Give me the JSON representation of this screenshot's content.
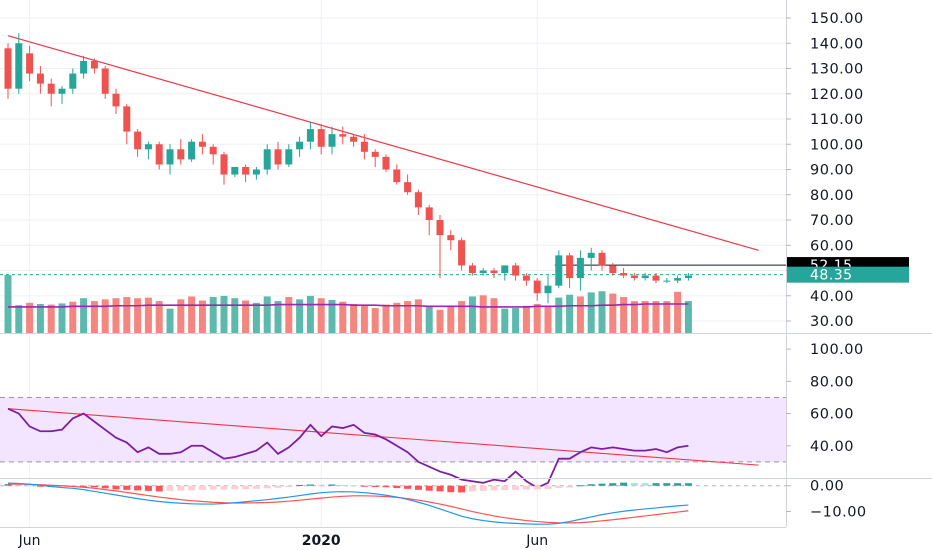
{
  "colors": {
    "up": "#26a69a",
    "down": "#ef5350",
    "up_volume": "#5db8ae",
    "down_volume": "#f3877f",
    "trendline": "#f23645",
    "ma": "#9c27b0",
    "rsi_line": "#7b1fa2",
    "rsi_band": "#f3e5ff",
    "macd_line": "#2196f3",
    "signal_line": "#ff5252",
    "axis_text": "#131722",
    "grid": "#eef0f5",
    "badge_last": "#26a69a",
    "badge_level": "#000000"
  },
  "price_axis": {
    "ticks": [
      "150.00",
      "140.00",
      "130.00",
      "120.00",
      "110.00",
      "100.00",
      "90.00",
      "80.00",
      "70.00",
      "60.00",
      "50.00",
      "40.00",
      "30.00"
    ],
    "tick_values": [
      150,
      140,
      130,
      120,
      110,
      100,
      90,
      80,
      70,
      60,
      50,
      40,
      30
    ],
    "range": [
      28,
      156
    ],
    "last_price_badge": "48.35",
    "level_badge": "52.15"
  },
  "rsi_axis": {
    "ticks": [
      "100.00",
      "80.00",
      "60.00",
      "40.00"
    ],
    "tick_values": [
      100,
      80,
      60,
      40
    ],
    "range": [
      20,
      110
    ],
    "band": [
      30,
      70
    ]
  },
  "macd_axis": {
    "ticks": [
      "0.00",
      "−10.00"
    ],
    "tick_values": [
      0,
      -10
    ],
    "range": [
      -16,
      3
    ]
  },
  "time_axis": {
    "labels": [
      {
        "text": "Jun",
        "index": 2,
        "bold": false
      },
      {
        "text": "2020",
        "index": 29,
        "bold": true
      },
      {
        "text": "Jun",
        "index": 49,
        "bold": false
      }
    ]
  },
  "chart_data": {
    "type": "candlestick",
    "ohlc": [
      [
        138,
        140,
        118,
        122
      ],
      [
        122,
        144,
        120,
        140
      ],
      [
        136,
        139,
        125,
        128
      ],
      [
        128,
        131,
        120,
        124
      ],
      [
        124,
        126,
        115,
        120
      ],
      [
        120,
        123,
        116,
        122
      ],
      [
        122,
        130,
        120,
        128
      ],
      [
        128,
        135,
        126,
        133
      ],
      [
        133,
        134,
        128,
        130
      ],
      [
        130,
        131,
        118,
        120
      ],
      [
        120,
        122,
        112,
        115
      ],
      [
        115,
        116,
        100,
        105
      ],
      [
        105,
        106,
        95,
        98
      ],
      [
        98,
        101,
        94,
        100
      ],
      [
        100,
        101,
        90,
        92
      ],
      [
        92,
        100,
        88,
        98
      ],
      [
        98,
        102,
        92,
        94
      ],
      [
        94,
        102,
        93,
        101
      ],
      [
        101,
        104,
        96,
        99
      ],
      [
        99,
        100,
        92,
        96
      ],
      [
        96,
        97,
        84,
        88
      ],
      [
        88,
        91,
        87,
        91
      ],
      [
        91,
        92,
        85,
        88
      ],
      [
        88,
        91,
        86,
        90
      ],
      [
        90,
        100,
        88,
        98
      ],
      [
        98,
        101,
        90,
        92
      ],
      [
        92,
        100,
        91,
        98
      ],
      [
        98,
        103,
        95,
        101
      ],
      [
        101,
        109,
        98,
        106
      ],
      [
        106,
        108,
        96,
        99
      ],
      [
        99,
        107,
        96,
        104
      ],
      [
        104,
        107,
        100,
        103
      ],
      [
        103,
        104,
        99,
        101
      ],
      [
        101,
        104,
        94,
        97
      ],
      [
        97,
        98,
        91,
        95
      ],
      [
        95,
        96,
        89,
        90
      ],
      [
        90,
        92,
        84,
        85
      ],
      [
        85,
        88,
        80,
        81
      ],
      [
        81,
        82,
        72,
        75
      ],
      [
        75,
        76,
        64,
        70
      ],
      [
        70,
        72,
        47,
        64
      ],
      [
        64,
        66,
        58,
        62
      ],
      [
        62,
        63,
        50,
        52
      ],
      [
        52,
        53,
        48,
        49
      ],
      [
        49,
        51,
        48,
        50
      ],
      [
        50,
        51,
        47,
        49
      ],
      [
        49,
        52,
        46,
        52
      ],
      [
        52,
        53,
        46,
        48
      ],
      [
        48,
        49,
        44,
        46
      ],
      [
        46,
        47,
        38,
        41
      ],
      [
        41,
        48,
        37,
        44
      ],
      [
        44,
        58,
        43,
        56
      ],
      [
        56,
        57,
        43,
        47
      ],
      [
        47,
        58,
        42,
        55
      ],
      [
        55,
        59,
        50,
        57
      ],
      [
        57,
        58,
        50,
        52
      ],
      [
        52,
        53,
        48,
        49
      ],
      [
        49,
        51,
        47,
        48
      ],
      [
        48,
        49,
        46,
        47
      ],
      [
        47,
        49,
        46,
        48
      ],
      [
        48,
        49,
        45,
        46
      ],
      [
        46,
        47,
        45,
        46
      ],
      [
        46,
        48,
        45,
        47
      ],
      [
        47,
        49,
        46,
        48
      ]
    ],
    "volume_ma": [
      45,
      45,
      45,
      45,
      45,
      45,
      46,
      46,
      46,
      46,
      47,
      47,
      47,
      48,
      48,
      48,
      48,
      48,
      48,
      48,
      48,
      48,
      48,
      48,
      48,
      49,
      49,
      49,
      49,
      49,
      49,
      49,
      48,
      48,
      48,
      47,
      47,
      47,
      47,
      46,
      46,
      46,
      46,
      46,
      45,
      45,
      45,
      45,
      45,
      46,
      46,
      46,
      47,
      47,
      47,
      48,
      48,
      49,
      49,
      50,
      50,
      50,
      50,
      50
    ],
    "volume": [
      [
        100,
        1
      ],
      [
        48,
        1
      ],
      [
        52,
        0
      ],
      [
        50,
        1
      ],
      [
        49,
        0
      ],
      [
        51,
        1
      ],
      [
        54,
        0
      ],
      [
        60,
        1
      ],
      [
        55,
        0
      ],
      [
        58,
        0
      ],
      [
        60,
        0
      ],
      [
        62,
        0
      ],
      [
        60,
        0
      ],
      [
        61,
        0
      ],
      [
        55,
        0
      ],
      [
        42,
        1
      ],
      [
        58,
        0
      ],
      [
        63,
        0
      ],
      [
        56,
        0
      ],
      [
        62,
        1
      ],
      [
        64,
        1
      ],
      [
        60,
        1
      ],
      [
        56,
        0
      ],
      [
        52,
        1
      ],
      [
        63,
        1
      ],
      [
        55,
        1
      ],
      [
        62,
        0
      ],
      [
        58,
        1
      ],
      [
        64,
        1
      ],
      [
        60,
        0
      ],
      [
        57,
        1
      ],
      [
        54,
        0
      ],
      [
        50,
        0
      ],
      [
        47,
        0
      ],
      [
        43,
        0
      ],
      [
        49,
        0
      ],
      [
        52,
        0
      ],
      [
        55,
        0
      ],
      [
        58,
        0
      ],
      [
        46,
        1
      ],
      [
        40,
        0
      ],
      [
        47,
        0
      ],
      [
        55,
        0
      ],
      [
        63,
        1
      ],
      [
        65,
        0
      ],
      [
        60,
        0
      ],
      [
        42,
        1
      ],
      [
        43,
        1
      ],
      [
        47,
        0
      ],
      [
        50,
        0
      ],
      [
        47,
        0
      ],
      [
        61,
        1
      ],
      [
        66,
        1
      ],
      [
        63,
        0
      ],
      [
        70,
        1
      ],
      [
        72,
        1
      ],
      [
        68,
        0
      ],
      [
        62,
        0
      ],
      [
        55,
        0
      ],
      [
        55,
        0
      ],
      [
        55,
        0
      ],
      [
        55,
        0
      ],
      [
        71,
        0
      ],
      [
        55,
        1
      ]
    ],
    "rsi": [
      63,
      60,
      52,
      49,
      49,
      50,
      57,
      60,
      55,
      50,
      45,
      42,
      36,
      39,
      35,
      35,
      36,
      40,
      40,
      36,
      32,
      33,
      35,
      37,
      42,
      35,
      39,
      45,
      53,
      46,
      52,
      51,
      53,
      48,
      47,
      44,
      40,
      36,
      30,
      27,
      24,
      22,
      19,
      18,
      17,
      19,
      18,
      24,
      18,
      14,
      17,
      32,
      32,
      36,
      39,
      38,
      39,
      38,
      37,
      37,
      38,
      36,
      39,
      40
    ],
    "macd_histogram": [
      0.6,
      0.4,
      0.2,
      -0.3,
      -0.5,
      -0.4,
      -0.2,
      -0.3,
      -0.6,
      -1.0,
      -1.4,
      -1.6,
      -1.8,
      -2.0,
      -2.2,
      -2.0,
      -1.9,
      -1.8,
      -1.6,
      -1.5,
      -1.5,
      -1.4,
      -1.3,
      -1.2,
      -1.0,
      -0.8,
      -0.5,
      0.3,
      0.5,
      0.4,
      0.5,
      0.3,
      0.2,
      -0.2,
      -0.5,
      -0.6,
      -0.9,
      -1.2,
      -1.6,
      -1.9,
      -2.2,
      -2.5,
      -2.6,
      -2.2,
      -2.0,
      -1.8,
      -1.7,
      -1.6,
      -1.5,
      -1.4,
      -1.3,
      -0.9,
      -0.7,
      0.2,
      0.6,
      0.8,
      1.0,
      1.2,
      1.1,
      1.0,
      1.0,
      1.0,
      1.0,
      1.0
    ],
    "macd": [
      1.0,
      0.9,
      0.6,
      0.2,
      -0.3,
      -0.7,
      -1.0,
      -1.5,
      -2.2,
      -2.9,
      -3.6,
      -4.3,
      -5.0,
      -5.6,
      -6.1,
      -6.5,
      -6.8,
      -7.0,
      -7.1,
      -7.1,
      -6.9,
      -6.6,
      -6.2,
      -5.8,
      -5.4,
      -4.9,
      -4.4,
      -3.8,
      -3.2,
      -2.7,
      -2.4,
      -2.3,
      -2.4,
      -2.7,
      -3.1,
      -3.7,
      -4.4,
      -5.3,
      -6.4,
      -7.6,
      -9.0,
      -10.4,
      -11.8,
      -12.8,
      -13.5,
      -14.0,
      -14.4,
      -14.6,
      -14.8,
      -14.9,
      -14.9,
      -14.6,
      -13.9,
      -13.0,
      -12.1,
      -11.2,
      -10.5,
      -9.9,
      -9.4,
      -9.0,
      -8.6,
      -8.2,
      -7.8,
      -7.5
    ],
    "signal": [
      0.6,
      0.6,
      0.5,
      0.4,
      0.2,
      0.0,
      -0.3,
      -0.6,
      -1.0,
      -1.5,
      -2.0,
      -2.6,
      -3.2,
      -3.8,
      -4.4,
      -4.9,
      -5.4,
      -5.8,
      -6.1,
      -6.4,
      -6.6,
      -6.7,
      -6.7,
      -6.6,
      -6.5,
      -6.3,
      -6.0,
      -5.6,
      -5.2,
      -4.8,
      -4.4,
      -4.1,
      -3.9,
      -3.9,
      -4.0,
      -4.2,
      -4.5,
      -5.0,
      -5.6,
      -6.3,
      -7.1,
      -8.0,
      -9.0,
      -10.0,
      -10.9,
      -11.7,
      -12.4,
      -13.0,
      -13.5,
      -13.9,
      -14.2,
      -14.4,
      -14.4,
      -14.3,
      -14.0,
      -13.6,
      -13.2,
      -12.7,
      -12.2,
      -11.7,
      -11.2,
      -10.7,
      -10.2,
      -9.7
    ],
    "price_trendline": [
      [
        0,
        143
      ],
      [
        69.5,
        58
      ]
    ],
    "horizontal_level": {
      "value": 52.15,
      "from_index": 51
    },
    "last_price": 48.35,
    "rsi_trendline": [
      [
        0,
        63
      ],
      [
        69.5,
        28
      ]
    ]
  }
}
